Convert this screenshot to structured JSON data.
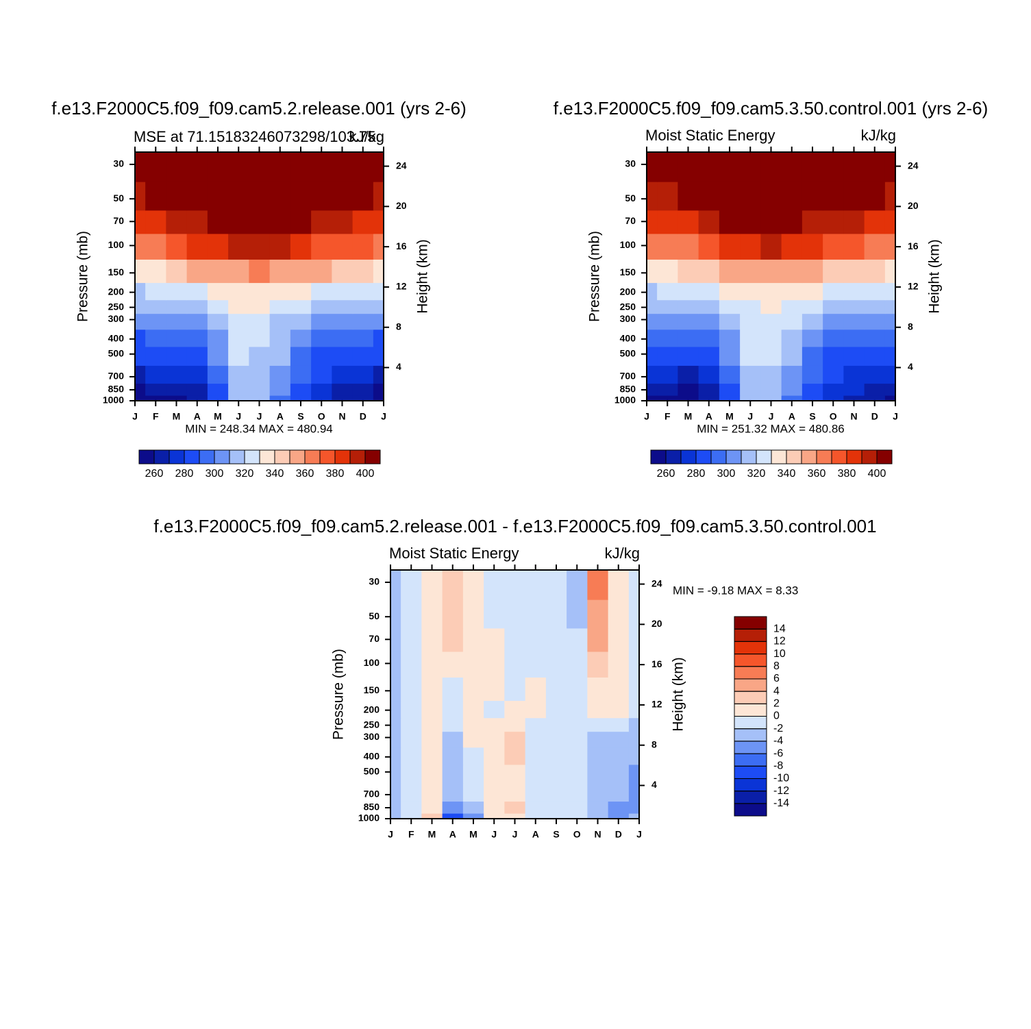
{
  "chart_data": [
    {
      "type": "contour",
      "title": "f.e13.F2000C5.f09_f09.cam5.2.release.001  (yrs 2-6)",
      "subtitle": "MSE at 71.15183246073298/103.75",
      "units": "kJ/kg",
      "ylabel": "Pressure (mb)",
      "y2label": "Height (km)",
      "stats": "MIN =  248.34  MAX =  480.94",
      "categories": [
        "J",
        "F",
        "M",
        "A",
        "M",
        "J",
        "J",
        "A",
        "S",
        "O",
        "N",
        "D",
        "J"
      ],
      "ylim": [
        1000,
        25
      ],
      "ylog": true,
      "yticks": [
        1000,
        850,
        700,
        500,
        400,
        300,
        250,
        200,
        150,
        100,
        70,
        50,
        30
      ],
      "y2lim": [
        0.7,
        25.4
      ],
      "y2ticks": [
        4,
        8,
        12,
        16,
        20,
        24
      ],
      "z_pressure": [
        1000,
        850,
        700,
        500,
        400,
        300,
        250,
        200,
        150,
        100,
        70,
        50,
        30
      ],
      "z": [
        [
          252,
          258,
          258,
          260,
          282,
          310,
          310,
          298,
          285,
          272,
          262,
          262,
          252
        ],
        [
          258,
          262,
          262,
          266,
          286,
          312,
          312,
          300,
          288,
          276,
          268,
          264,
          258
        ],
        [
          266,
          272,
          274,
          276,
          292,
          315,
          316,
          306,
          290,
          280,
          276,
          270,
          266
        ],
        [
          280,
          284,
          285,
          288,
          300,
          320,
          318,
          310,
          296,
          288,
          284,
          282,
          280
        ],
        [
          288,
          292,
          294,
          296,
          306,
          322,
          324,
          314,
          300,
          294,
          290,
          290,
          288
        ],
        [
          300,
          302,
          304,
          306,
          314,
          325,
          328,
          318,
          312,
          306,
          304,
          303,
          301
        ],
        [
          312,
          313,
          315,
          318,
          322,
          330,
          332,
          326,
          320,
          316,
          315,
          314,
          312
        ],
        [
          318,
          320,
          324,
          328,
          332,
          336,
          338,
          334,
          330,
          326,
          324,
          322,
          320
        ],
        [
          336,
          338,
          344,
          350,
          355,
          358,
          360,
          358,
          354,
          350,
          346,
          342,
          338
        ],
        [
          362,
          365,
          372,
          380,
          386,
          390,
          392,
          390,
          384,
          378,
          374,
          370,
          364
        ],
        [
          382,
          385,
          392,
          398,
          402,
          406,
          408,
          406,
          400,
          395,
          392,
          388,
          382
        ],
        [
          398,
          402,
          410,
          420,
          430,
          440,
          445,
          440,
          430,
          420,
          412,
          405,
          398
        ],
        [
          440,
          440,
          440,
          440,
          440,
          440,
          440,
          440,
          440,
          440,
          440,
          440,
          440
        ]
      ],
      "levels": [
        260,
        270,
        280,
        290,
        300,
        310,
        320,
        330,
        340,
        350,
        360,
        370,
        380,
        390,
        400
      ],
      "colorbar_label_every": 2,
      "colorbar_orientation": "horizontal",
      "colors": [
        "#0c0c8a",
        "#0a1fa8",
        "#0a34d6",
        "#1d4cf5",
        "#3c6df3",
        "#6d94f5",
        "#a5c0f8",
        "#d3e4fb",
        "#fde6d6",
        "#fcccb6",
        "#f9a686",
        "#f77c55",
        "#f5562b",
        "#e33309",
        "#b51f07",
        "#850000"
      ]
    },
    {
      "type": "contour",
      "title": "f.e13.F2000C5.f09_f09.cam5.3.50.control.001  (yrs 2-6)",
      "subtitle": "Moist Static Energy",
      "units": "kJ/kg",
      "ylabel": "Pressure (mb)",
      "y2label": "Height (km)",
      "stats": "MIN =  251.32  MAX =  480.86",
      "categories": [
        "J",
        "F",
        "M",
        "A",
        "M",
        "J",
        "J",
        "A",
        "S",
        "O",
        "N",
        "D",
        "J"
      ],
      "ylim": [
        1000,
        25
      ],
      "ylog": true,
      "yticks": [
        1000,
        850,
        700,
        500,
        400,
        300,
        250,
        200,
        150,
        100,
        70,
        50,
        30
      ],
      "y2lim": [
        0.7,
        25.4
      ],
      "y2ticks": [
        4,
        8,
        12,
        16,
        20,
        24
      ],
      "z_pressure": [
        1000,
        850,
        700,
        500,
        400,
        300,
        250,
        200,
        150,
        100,
        70,
        50,
        30
      ],
      "z": [
        [
          255,
          256,
          254,
          262,
          282,
          310,
          310,
          298,
          284,
          274,
          266,
          262,
          255
        ],
        [
          262,
          262,
          259,
          266,
          286,
          312,
          312,
          302,
          288,
          278,
          270,
          266,
          262
        ],
        [
          270,
          272,
          268,
          276,
          292,
          316,
          316,
          306,
          292,
          282,
          276,
          274,
          270
        ],
        [
          280,
          284,
          284,
          288,
          302,
          322,
          320,
          310,
          296,
          288,
          284,
          282,
          280
        ],
        [
          290,
          292,
          292,
          296,
          308,
          324,
          324,
          314,
          302,
          294,
          290,
          290,
          290
        ],
        [
          302,
          302,
          304,
          308,
          316,
          326,
          328,
          320,
          312,
          306,
          304,
          303,
          302
        ],
        [
          312,
          313,
          315,
          318,
          322,
          328,
          330,
          326,
          320,
          316,
          315,
          314,
          312
        ],
        [
          318,
          320,
          322,
          326,
          330,
          334,
          336,
          334,
          330,
          326,
          324,
          322,
          320
        ],
        [
          334,
          336,
          340,
          346,
          352,
          356,
          358,
          356,
          350,
          346,
          342,
          340,
          338
        ],
        [
          360,
          362,
          368,
          376,
          382,
          388,
          390,
          386,
          380,
          374,
          370,
          366,
          362
        ],
        [
          380,
          383,
          388,
          394,
          400,
          405,
          406,
          404,
          398,
          393,
          390,
          386,
          382
        ],
        [
          396,
          398,
          404,
          414,
          424,
          436,
          440,
          434,
          424,
          414,
          404,
          400,
          398
        ],
        [
          440,
          440,
          440,
          440,
          440,
          440,
          440,
          440,
          440,
          440,
          440,
          440,
          440
        ]
      ],
      "levels": [
        260,
        270,
        280,
        290,
        300,
        310,
        320,
        330,
        340,
        350,
        360,
        370,
        380,
        390,
        400
      ],
      "colorbar_label_every": 2,
      "colorbar_orientation": "horizontal",
      "colors": [
        "#0c0c8a",
        "#0a1fa8",
        "#0a34d6",
        "#1d4cf5",
        "#3c6df3",
        "#6d94f5",
        "#a5c0f8",
        "#d3e4fb",
        "#fde6d6",
        "#fcccb6",
        "#f9a686",
        "#f77c55",
        "#f5562b",
        "#e33309",
        "#b51f07",
        "#850000"
      ]
    },
    {
      "type": "contour",
      "title": "f.e13.F2000C5.f09_f09.cam5.2.release.001 - f.e13.F2000C5.f09_f09.cam5.3.50.control.001",
      "subtitle": "Moist Static Energy",
      "units": "kJ/kg",
      "ylabel": "Pressure (mb)",
      "y2label": "Height (km)",
      "stats": "MIN =   -9.18  MAX =    8.33",
      "categories": [
        "J",
        "F",
        "M",
        "A",
        "M",
        "J",
        "J",
        "A",
        "S",
        "O",
        "N",
        "D",
        "J"
      ],
      "ylim": [
        1000,
        25
      ],
      "ylog": true,
      "yticks": [
        1000,
        850,
        700,
        500,
        400,
        300,
        250,
        200,
        150,
        100,
        70,
        50,
        30
      ],
      "y2lim": [
        0.7,
        25.4
      ],
      "y2ticks": [
        4,
        8,
        12,
        16,
        20,
        24
      ],
      "z_pressure": [
        1000,
        850,
        700,
        500,
        400,
        300,
        250,
        200,
        150,
        100,
        70,
        50,
        30
      ],
      "z": [
        [
          -3,
          -1,
          3,
          -9,
          -5,
          1,
          1,
          -1,
          -1,
          -1,
          -3,
          -5,
          -3
        ],
        [
          -3,
          -1,
          1,
          -5,
          -3,
          1,
          3,
          -1,
          -1,
          -1,
          -3,
          -5,
          -5
        ],
        [
          -3,
          -1,
          1,
          -3,
          -1,
          1,
          1,
          -1,
          -1,
          -1,
          -3,
          -3,
          -5
        ],
        [
          -3,
          -1,
          1,
          -3,
          -1,
          1,
          1,
          -1,
          -1,
          -1,
          -3,
          -3,
          -5
        ],
        [
          -3,
          -1,
          1,
          -3,
          -1,
          1,
          3,
          -1,
          -1,
          -1,
          -3,
          -3,
          -3
        ],
        [
          -3,
          -1,
          1,
          -3,
          1,
          1,
          3,
          -1,
          -1,
          -1,
          -3,
          -3,
          -3
        ],
        [
          -3,
          -1,
          1,
          -1,
          1,
          1,
          1,
          -1,
          -1,
          -1,
          -1,
          -1,
          -3
        ],
        [
          -3,
          -1,
          1,
          -1,
          1,
          -1,
          1,
          1,
          -1,
          -1,
          1,
          1,
          -1
        ],
        [
          -3,
          -1,
          1,
          -1,
          1,
          1,
          -1,
          1,
          -1,
          -1,
          1,
          1,
          -1
        ],
        [
          -3,
          -1,
          1,
          1,
          1,
          1,
          -1,
          -1,
          -1,
          -1,
          3,
          1,
          -1
        ],
        [
          -3,
          -1,
          1,
          2,
          1,
          1,
          -1,
          -1,
          -1,
          -1,
          4,
          1,
          -1
        ],
        [
          -3,
          -1,
          1,
          3,
          1,
          -1,
          -1,
          -1,
          -1,
          -3,
          5,
          1,
          -1
        ],
        [
          -3,
          -1,
          1,
          3,
          1,
          -1,
          -1,
          -1,
          -1,
          -3,
          6,
          1,
          -1
        ]
      ],
      "levels": [
        -14,
        -12,
        -10,
        -8,
        -6,
        -4,
        -2,
        0,
        2,
        4,
        6,
        8,
        10,
        12,
        14
      ],
      "colorbar_label_every": 1,
      "colorbar_orientation": "vertical",
      "colors": [
        "#0c0c8a",
        "#0a1fa8",
        "#0a34d6",
        "#1d4cf5",
        "#3c6df3",
        "#6d94f5",
        "#a5c0f8",
        "#d3e4fb",
        "#fde6d6",
        "#fcccb6",
        "#f9a686",
        "#f77c55",
        "#f5562b",
        "#e33309",
        "#b51f07",
        "#850000"
      ]
    }
  ]
}
